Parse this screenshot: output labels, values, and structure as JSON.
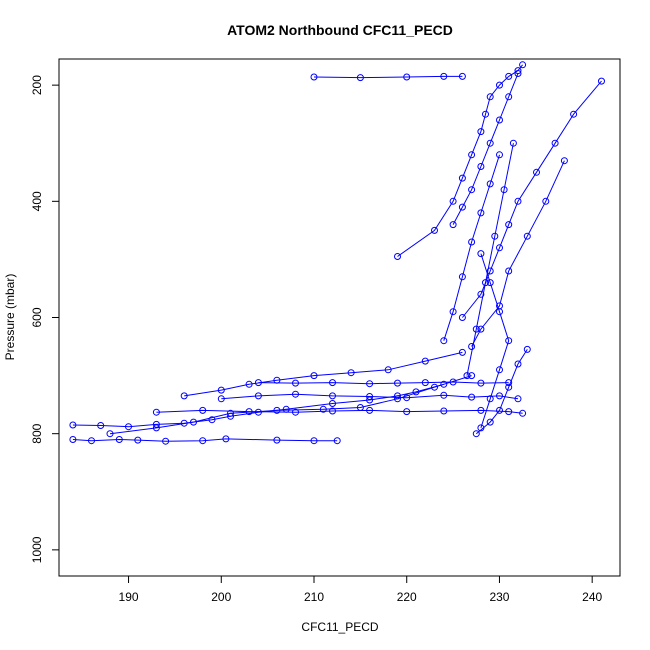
{
  "chart_data": {
    "type": "scatter",
    "title": "ATOM2 Northbound CFC11_PECD",
    "xlabel": "CFC11_PECD",
    "ylabel": "Pressure (mbar)",
    "xlim": [
      182.5,
      243.0
    ],
    "ylim": [
      1045,
      155
    ],
    "y_axis_inverted": true,
    "x_ticks": [
      190,
      200,
      210,
      220,
      230,
      240
    ],
    "y_ticks": [
      200,
      400,
      600,
      800,
      1000
    ],
    "grid": false,
    "legend": "none",
    "series_color": "#0000ff",
    "marker": "open-circle",
    "series": [
      {
        "x": [
          184,
          186,
          189,
          191,
          194,
          198,
          200.5,
          206,
          210,
          212.5
        ],
        "y": [
          810,
          812,
          810,
          811,
          813,
          812,
          809,
          811,
          812,
          812
        ]
      },
      {
        "x": [
          184,
          187,
          190,
          193,
          196,
          199,
          201,
          204,
          207,
          212,
          216,
          219,
          221,
          224
        ],
        "y": [
          785,
          786,
          788,
          784,
          782,
          776,
          770,
          763,
          758,
          748,
          742,
          735,
          728,
          715
        ]
      },
      {
        "x": [
          188,
          193,
          197,
          201,
          206,
          211,
          215,
          219,
          223,
          227
        ],
        "y": [
          800,
          790,
          780,
          765,
          760,
          758,
          755,
          740,
          720,
          700
        ]
      },
      {
        "x": [
          196,
          200,
          203,
          206,
          210,
          214,
          218,
          222,
          226
        ],
        "y": [
          735,
          725,
          715,
          708,
          700,
          695,
          690,
          675,
          660
        ]
      },
      {
        "x": [
          193,
          198,
          203,
          208,
          212,
          216,
          220,
          224,
          228,
          231,
          232.5
        ],
        "y": [
          763,
          760,
          762,
          763,
          761,
          760,
          762,
          761,
          760,
          762,
          765
        ]
      },
      {
        "x": [
          200,
          204,
          208,
          212,
          216,
          220,
          224,
          227,
          230,
          232
        ],
        "y": [
          740,
          735,
          732,
          735,
          736,
          738,
          734,
          737,
          735,
          740
        ]
      },
      {
        "x": [
          204,
          208,
          212,
          216,
          219,
          222,
          225,
          228,
          231
        ],
        "y": [
          712,
          713,
          712,
          714,
          713,
          712,
          711,
          713,
          712
        ]
      },
      {
        "x": [
          219,
          223,
          225,
          226,
          227,
          228,
          228.5,
          229,
          230,
          231,
          232,
          232.5
        ],
        "y": [
          495,
          450,
          400,
          360,
          320,
          280,
          250,
          220,
          200,
          185,
          175,
          165
        ]
      },
      {
        "x": [
          210,
          215,
          220,
          224,
          226
        ],
        "y": [
          186,
          187,
          186,
          185,
          185
        ]
      },
      {
        "x": [
          226,
          228,
          229,
          230,
          231,
          232,
          234,
          236,
          238,
          241
        ],
        "y": [
          600,
          560,
          520,
          480,
          440,
          400,
          350,
          300,
          250,
          193
        ]
      },
      {
        "x": [
          227,
          228,
          230,
          231,
          233,
          235,
          237
        ],
        "y": [
          650,
          620,
          580,
          520,
          460,
          400,
          330
        ]
      },
      {
        "x": [
          227.5,
          229,
          230,
          231,
          232,
          233
        ],
        "y": [
          800,
          780,
          760,
          720,
          680,
          655
        ]
      },
      {
        "x": [
          226.5,
          227.5,
          228.5,
          229.5,
          230.5,
          231.5
        ],
        "y": [
          700,
          620,
          540,
          460,
          380,
          300
        ]
      },
      {
        "x": [
          224,
          225,
          226,
          227,
          228,
          229,
          230
        ],
        "y": [
          640,
          590,
          530,
          470,
          420,
          370,
          320
        ]
      },
      {
        "x": [
          228,
          229,
          230,
          231,
          230,
          229,
          228
        ],
        "y": [
          790,
          740,
          690,
          640,
          590,
          540,
          490
        ]
      },
      {
        "x": [
          225,
          226,
          227,
          228,
          229,
          230,
          231,
          232
        ],
        "y": [
          440,
          410,
          380,
          340,
          300,
          260,
          220,
          180
        ]
      }
    ]
  }
}
